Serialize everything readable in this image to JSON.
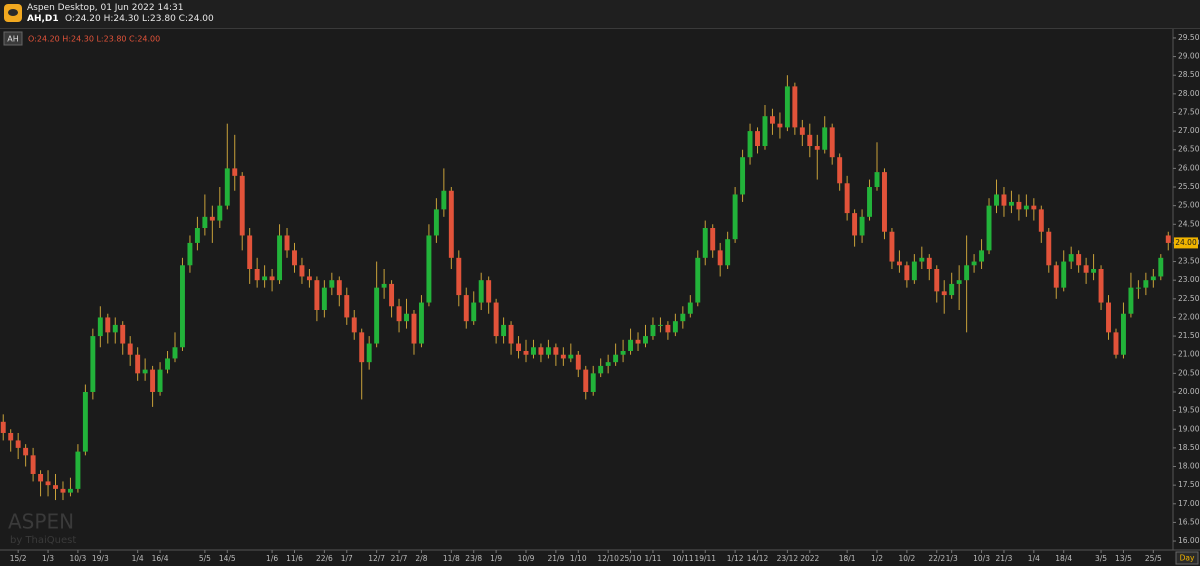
{
  "header": {
    "title": "Aspen Desktop, 01 Jun 2022 14:31",
    "symbol": "AH,D1",
    "ohlc": "O:24.20 H:24.30 L:23.80 C:24.00"
  },
  "chart_data": {
    "type": "candlestick",
    "legend_symbol": "AH",
    "legend_ohlc": "O:24.20 H:24.30 L:23.80 C:24.00",
    "watermark": "ASPEN",
    "watermark_sub": "by ThaiQuest",
    "period_label": "Day",
    "up_color": "#22b33a",
    "down_color": "#e2533a",
    "wick_color": "#c9a23a",
    "last_price": {
      "value": 24,
      "label": "24.00"
    },
    "ylim": [
      15.76,
      29.74
    ],
    "yticks": [
      {
        "value": 16,
        "label": "16.00"
      },
      {
        "value": 16.5,
        "label": "16.50"
      },
      {
        "value": 17,
        "label": "17.00"
      },
      {
        "value": 17.5,
        "label": "17.50"
      },
      {
        "value": 18,
        "label": "18.00"
      },
      {
        "value": 18.5,
        "label": "18.50"
      },
      {
        "value": 19,
        "label": "19.00"
      },
      {
        "value": 19.5,
        "label": "19.50"
      },
      {
        "value": 20,
        "label": "20.00"
      },
      {
        "value": 20.5,
        "label": "20.50"
      },
      {
        "value": 21,
        "label": "21.00"
      },
      {
        "value": 21.5,
        "label": "21.50"
      },
      {
        "value": 22,
        "label": "22.00"
      },
      {
        "value": 22.5,
        "label": "22.50"
      },
      {
        "value": 23,
        "label": "23.00"
      },
      {
        "value": 23.5,
        "label": "23.50"
      },
      {
        "value": 24,
        "label": "24.00"
      },
      {
        "value": 24.5,
        "label": "24.50"
      },
      {
        "value": 25,
        "label": "25.00"
      },
      {
        "value": 25.5,
        "label": "25.50"
      },
      {
        "value": 26,
        "label": "26.00"
      },
      {
        "value": 26.5,
        "label": "26.50"
      },
      {
        "value": 27,
        "label": "27.00"
      },
      {
        "value": 27.5,
        "label": "27.50"
      },
      {
        "value": 28,
        "label": "28.00"
      },
      {
        "value": 28.5,
        "label": "28.50"
      },
      {
        "value": 29,
        "label": "29.00"
      },
      {
        "value": 29.5,
        "label": "29.50"
      }
    ],
    "categories": [
      null,
      null,
      "15/2",
      null,
      null,
      null,
      "1/3",
      null,
      null,
      null,
      "10/3",
      null,
      null,
      "19/3",
      null,
      null,
      null,
      null,
      "1/4",
      null,
      null,
      "16/4",
      null,
      null,
      null,
      null,
      null,
      "5/5",
      null,
      null,
      "14/5",
      null,
      null,
      null,
      null,
      null,
      "1/6",
      null,
      null,
      "11/6",
      null,
      null,
      null,
      "22/6",
      null,
      null,
      "1/7",
      null,
      null,
      null,
      "12/7",
      null,
      null,
      "21/7",
      null,
      null,
      "2/8",
      null,
      null,
      null,
      "11/8",
      null,
      null,
      "23/8",
      null,
      null,
      "1/9",
      null,
      null,
      null,
      "10/9",
      null,
      null,
      null,
      "21/9",
      null,
      null,
      "1/10",
      null,
      null,
      null,
      "12/10",
      null,
      null,
      "25/10",
      null,
      null,
      "1/11",
      null,
      null,
      null,
      "10/11",
      null,
      null,
      "19/11",
      null,
      null,
      null,
      "1/12",
      null,
      null,
      "14/12",
      null,
      null,
      null,
      "23/12",
      null,
      null,
      "2022",
      null,
      null,
      null,
      null,
      "18/1",
      null,
      null,
      null,
      "1/2",
      null,
      null,
      null,
      "10/2",
      null,
      null,
      null,
      "22/2",
      null,
      "1/3",
      null,
      null,
      null,
      "10/3",
      null,
      null,
      "21/3",
      null,
      null,
      null,
      "1/4",
      null,
      null,
      null,
      "18/4",
      null,
      null,
      null,
      null,
      "3/5",
      null,
      null,
      "13/5",
      null,
      null,
      null,
      "25/5",
      null,
      null
    ],
    "candles": [
      [
        19.2,
        19.4,
        18.7,
        18.9
      ],
      [
        18.9,
        19.0,
        18.4,
        18.7
      ],
      [
        18.7,
        18.9,
        18.2,
        18.5
      ],
      [
        18.5,
        18.6,
        18.0,
        18.3
      ],
      [
        18.3,
        18.5,
        17.6,
        17.8
      ],
      [
        17.8,
        17.9,
        17.2,
        17.6
      ],
      [
        17.6,
        17.9,
        17.2,
        17.5
      ],
      [
        17.5,
        17.8,
        17.1,
        17.4
      ],
      [
        17.4,
        17.6,
        17.1,
        17.3
      ],
      [
        17.3,
        17.7,
        17.2,
        17.4
      ],
      [
        17.4,
        18.6,
        17.3,
        18.4
      ],
      [
        18.4,
        20.2,
        18.3,
        20.0
      ],
      [
        20.0,
        21.7,
        19.8,
        21.5
      ],
      [
        21.5,
        22.3,
        21.2,
        22.0
      ],
      [
        22.0,
        22.1,
        21.3,
        21.6
      ],
      [
        21.6,
        22.0,
        21.3,
        21.8
      ],
      [
        21.8,
        21.9,
        21.0,
        21.3
      ],
      [
        21.3,
        21.5,
        20.7,
        21.0
      ],
      [
        21.0,
        21.2,
        20.3,
        20.5
      ],
      [
        20.5,
        20.9,
        20.3,
        20.6
      ],
      [
        20.6,
        20.7,
        19.6,
        20.0
      ],
      [
        20.0,
        20.8,
        19.9,
        20.6
      ],
      [
        20.6,
        21.1,
        20.5,
        20.9
      ],
      [
        20.9,
        21.6,
        20.8,
        21.2
      ],
      [
        21.2,
        23.6,
        21.1,
        23.4
      ],
      [
        23.4,
        24.2,
        23.2,
        24.0
      ],
      [
        24.0,
        24.7,
        23.8,
        24.4
      ],
      [
        24.4,
        25.3,
        24.2,
        24.7
      ],
      [
        24.7,
        25.0,
        24.0,
        24.6
      ],
      [
        24.6,
        25.5,
        24.4,
        25.0
      ],
      [
        25.0,
        27.2,
        24.9,
        26.0
      ],
      [
        26.0,
        26.9,
        25.4,
        25.8
      ],
      [
        25.8,
        25.9,
        23.8,
        24.2
      ],
      [
        24.2,
        24.4,
        22.9,
        23.3
      ],
      [
        23.3,
        23.6,
        22.8,
        23.0
      ],
      [
        23.0,
        23.4,
        22.8,
        23.1
      ],
      [
        23.1,
        23.3,
        22.7,
        23.0
      ],
      [
        23.0,
        24.5,
        22.9,
        24.2
      ],
      [
        24.2,
        24.4,
        23.6,
        23.8
      ],
      [
        23.8,
        24.0,
        23.2,
        23.4
      ],
      [
        23.4,
        23.6,
        22.9,
        23.1
      ],
      [
        23.1,
        23.3,
        22.8,
        23.0
      ],
      [
        23.0,
        23.1,
        21.9,
        22.2
      ],
      [
        22.2,
        23.0,
        22.0,
        22.8
      ],
      [
        22.8,
        23.2,
        22.6,
        23.0
      ],
      [
        23.0,
        23.1,
        22.3,
        22.6
      ],
      [
        22.6,
        22.8,
        21.8,
        22.0
      ],
      [
        22.0,
        22.2,
        21.4,
        21.6
      ],
      [
        21.6,
        21.7,
        19.8,
        20.8
      ],
      [
        20.8,
        21.5,
        20.6,
        21.3
      ],
      [
        21.3,
        23.5,
        21.2,
        22.8
      ],
      [
        22.8,
        23.3,
        22.5,
        22.9
      ],
      [
        22.9,
        23.0,
        22.0,
        22.3
      ],
      [
        22.3,
        22.5,
        21.6,
        21.9
      ],
      [
        21.9,
        22.5,
        21.7,
        22.1
      ],
      [
        22.1,
        22.2,
        21.0,
        21.3
      ],
      [
        21.3,
        22.6,
        21.2,
        22.4
      ],
      [
        22.4,
        24.5,
        22.3,
        24.2
      ],
      [
        24.2,
        25.2,
        24.0,
        24.9
      ],
      [
        24.9,
        26.0,
        24.7,
        25.4
      ],
      [
        25.4,
        25.5,
        23.3,
        23.6
      ],
      [
        23.6,
        23.8,
        22.3,
        22.6
      ],
      [
        22.6,
        22.8,
        21.7,
        21.9
      ],
      [
        21.9,
        22.7,
        21.8,
        22.4
      ],
      [
        22.4,
        23.2,
        22.2,
        23.0
      ],
      [
        23.0,
        23.1,
        22.1,
        22.4
      ],
      [
        22.4,
        22.5,
        21.3,
        21.5
      ],
      [
        21.5,
        22.0,
        21.3,
        21.8
      ],
      [
        21.8,
        21.9,
        21.0,
        21.3
      ],
      [
        21.3,
        21.5,
        20.9,
        21.1
      ],
      [
        21.1,
        21.4,
        20.8,
        21.0
      ],
      [
        21.0,
        21.4,
        20.9,
        21.2
      ],
      [
        21.2,
        21.3,
        20.8,
        21.0
      ],
      [
        21.0,
        21.4,
        20.9,
        21.2
      ],
      [
        21.2,
        21.3,
        20.7,
        21.0
      ],
      [
        21.0,
        21.2,
        20.7,
        20.9
      ],
      [
        20.9,
        21.3,
        20.8,
        21.0
      ],
      [
        21.0,
        21.1,
        20.4,
        20.6
      ],
      [
        20.6,
        20.7,
        19.8,
        20.0
      ],
      [
        20.0,
        20.7,
        19.9,
        20.5
      ],
      [
        20.5,
        20.9,
        20.4,
        20.7
      ],
      [
        20.7,
        21.0,
        20.5,
        20.8
      ],
      [
        20.8,
        21.3,
        20.7,
        21.0
      ],
      [
        21.0,
        21.4,
        20.8,
        21.1
      ],
      [
        21.1,
        21.7,
        21.0,
        21.4
      ],
      [
        21.4,
        21.6,
        21.1,
        21.3
      ],
      [
        21.3,
        21.8,
        21.2,
        21.5
      ],
      [
        21.5,
        22.0,
        21.4,
        21.8
      ],
      [
        21.8,
        22.0,
        21.6,
        21.8
      ],
      [
        21.8,
        21.9,
        21.4,
        21.6
      ],
      [
        21.6,
        22.1,
        21.5,
        21.9
      ],
      [
        21.9,
        22.3,
        21.7,
        22.1
      ],
      [
        22.1,
        22.6,
        22.0,
        22.4
      ],
      [
        22.4,
        23.8,
        22.3,
        23.6
      ],
      [
        23.6,
        24.6,
        23.4,
        24.4
      ],
      [
        24.4,
        24.5,
        23.6,
        23.8
      ],
      [
        23.8,
        24.0,
        23.1,
        23.4
      ],
      [
        23.4,
        24.3,
        23.3,
        24.1
      ],
      [
        24.1,
        25.5,
        24.0,
        25.3
      ],
      [
        25.3,
        26.5,
        25.1,
        26.3
      ],
      [
        26.3,
        27.2,
        26.1,
        27.0
      ],
      [
        27.0,
        27.1,
        26.4,
        26.6
      ],
      [
        26.6,
        27.7,
        26.5,
        27.4
      ],
      [
        27.4,
        27.6,
        26.9,
        27.2
      ],
      [
        27.2,
        27.5,
        26.8,
        27.1
      ],
      [
        27.1,
        28.5,
        27.0,
        28.2
      ],
      [
        28.2,
        28.3,
        26.9,
        27.1
      ],
      [
        27.1,
        27.3,
        26.6,
        26.9
      ],
      [
        26.9,
        27.2,
        26.3,
        26.6
      ],
      [
        26.6,
        26.9,
        25.7,
        26.5
      ],
      [
        26.5,
        27.4,
        26.4,
        27.1
      ],
      [
        27.1,
        27.2,
        26.1,
        26.3
      ],
      [
        26.3,
        26.4,
        25.4,
        25.6
      ],
      [
        25.6,
        25.8,
        24.6,
        24.8
      ],
      [
        24.8,
        24.9,
        23.9,
        24.2
      ],
      [
        24.2,
        24.9,
        24.0,
        24.7
      ],
      [
        24.7,
        25.7,
        24.6,
        25.5
      ],
      [
        25.5,
        26.7,
        25.4,
        25.9
      ],
      [
        25.9,
        26.0,
        24.1,
        24.3
      ],
      [
        24.3,
        24.4,
        23.3,
        23.5
      ],
      [
        23.5,
        23.8,
        23.2,
        23.4
      ],
      [
        23.4,
        23.5,
        22.8,
        23.0
      ],
      [
        23.0,
        23.7,
        22.9,
        23.5
      ],
      [
        23.5,
        23.9,
        23.3,
        23.6
      ],
      [
        23.6,
        23.7,
        23.0,
        23.3
      ],
      [
        23.3,
        23.4,
        22.4,
        22.7
      ],
      [
        22.7,
        23.0,
        22.1,
        22.6
      ],
      [
        22.6,
        23.2,
        22.5,
        22.9
      ],
      [
        22.9,
        23.4,
        22.2,
        23.0
      ],
      [
        23.0,
        24.2,
        21.6,
        23.4
      ],
      [
        23.4,
        23.7,
        23.2,
        23.5
      ],
      [
        23.5,
        24.1,
        23.3,
        23.8
      ],
      [
        23.8,
        25.2,
        23.7,
        25.0
      ],
      [
        25.0,
        25.7,
        24.8,
        25.3
      ],
      [
        25.3,
        25.5,
        24.7,
        25.0
      ],
      [
        25.0,
        25.4,
        24.8,
        25.1
      ],
      [
        25.1,
        25.3,
        24.6,
        24.9
      ],
      [
        24.9,
        25.3,
        24.7,
        25.0
      ],
      [
        25.0,
        25.2,
        24.6,
        24.9
      ],
      [
        24.9,
        25.0,
        24.0,
        24.3
      ],
      [
        24.3,
        24.4,
        23.2,
        23.4
      ],
      [
        23.4,
        23.5,
        22.5,
        22.8
      ],
      [
        22.8,
        23.8,
        22.7,
        23.5
      ],
      [
        23.5,
        23.9,
        23.3,
        23.7
      ],
      [
        23.7,
        23.8,
        23.2,
        23.4
      ],
      [
        23.4,
        23.6,
        22.9,
        23.2
      ],
      [
        23.2,
        23.7,
        23.0,
        23.3
      ],
      [
        23.3,
        23.4,
        22.2,
        22.4
      ],
      [
        22.4,
        22.6,
        21.4,
        21.6
      ],
      [
        21.6,
        21.7,
        20.9,
        21.0
      ],
      [
        21.0,
        22.4,
        20.9,
        22.1
      ],
      [
        22.1,
        23.2,
        22.0,
        22.8
      ],
      [
        22.8,
        23.0,
        22.5,
        22.8
      ],
      [
        22.8,
        23.2,
        22.6,
        23.0
      ],
      [
        23.0,
        23.3,
        22.8,
        23.1
      ],
      [
        23.1,
        23.7,
        23.0,
        23.6
      ],
      [
        24.2,
        24.3,
        23.8,
        24.0
      ]
    ]
  }
}
